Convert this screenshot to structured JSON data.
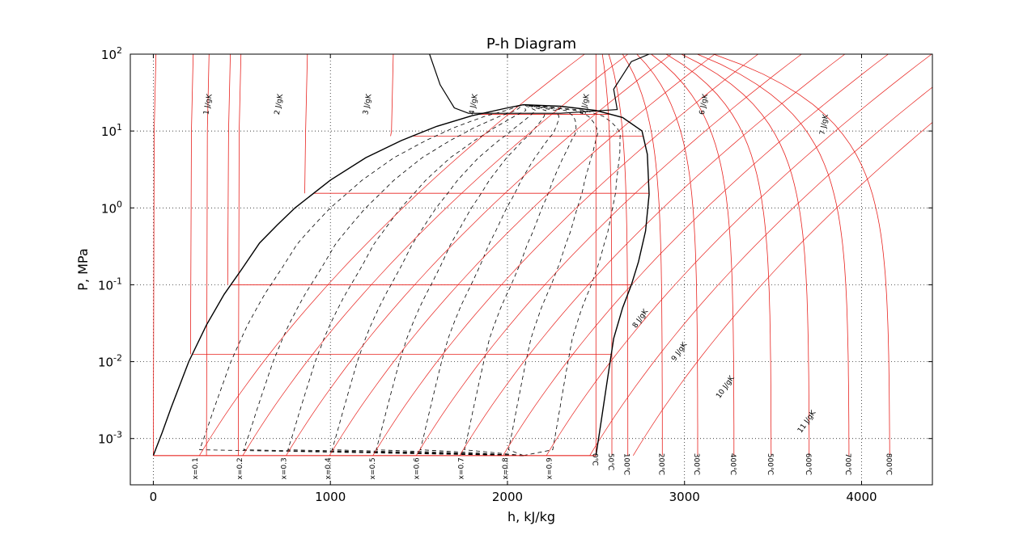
{
  "chart_data": {
    "type": "line",
    "title": "P-h Diagram",
    "xlabel": "h, kJ/kg",
    "ylabel": "P, MPa",
    "xlim": [
      -130,
      4400
    ],
    "ylim": [
      0.00025,
      100
    ],
    "yscale": "log",
    "grid": true,
    "x_ticks": [
      {
        "value": 0,
        "label": "0"
      },
      {
        "value": 1000,
        "label": "1000"
      },
      {
        "value": 2000,
        "label": "2000"
      },
      {
        "value": 3000,
        "label": "3000"
      },
      {
        "value": 4000,
        "label": "4000"
      }
    ],
    "y_ticks": [
      {
        "value": 0.001,
        "base": "10",
        "exp": "-3"
      },
      {
        "value": 0.01,
        "base": "10",
        "exp": "-2"
      },
      {
        "value": 0.1,
        "base": "10",
        "exp": "-1"
      },
      {
        "value": 1,
        "base": "10",
        "exp": "0"
      },
      {
        "value": 10,
        "base": "10",
        "exp": "1"
      },
      {
        "value": 100,
        "base": "10",
        "exp": "2"
      }
    ],
    "colors": {
      "saturation": "#000000",
      "quality": "#000000",
      "entropy": "#e8231f",
      "temperature": "#e8231f",
      "pressure": "#e8231f"
    },
    "saturation_dome": {
      "liquid": [
        [
          0,
          0.0006
        ],
        [
          50,
          0.0012
        ],
        [
          100,
          0.0025
        ],
        [
          200,
          0.01
        ],
        [
          300,
          0.03
        ],
        [
          400,
          0.075
        ],
        [
          500,
          0.16
        ],
        [
          600,
          0.35
        ],
        [
          700,
          0.6
        ],
        [
          800,
          1.0
        ],
        [
          1000,
          2.3
        ],
        [
          1200,
          4.5
        ],
        [
          1400,
          7.5
        ],
        [
          1600,
          11.5
        ],
        [
          1800,
          15.8
        ],
        [
          2000,
          20
        ],
        [
          2090,
          22
        ]
      ],
      "vapor": [
        [
          2090,
          22
        ],
        [
          2300,
          21
        ],
        [
          2500,
          18.5
        ],
        [
          2650,
          15
        ],
        [
          2760,
          10
        ],
        [
          2790,
          5
        ],
        [
          2800,
          1.5
        ],
        [
          2780,
          0.5
        ],
        [
          2740,
          0.2
        ],
        [
          2700,
          0.1
        ],
        [
          2650,
          0.05
        ],
        [
          2600,
          0.02
        ],
        [
          2560,
          0.005
        ],
        [
          2520,
          0.0012
        ],
        [
          2500,
          0.0006
        ]
      ]
    },
    "quality_lines": [
      {
        "label": "x=0.1",
        "label_h": 250
      },
      {
        "label": "x=0.2",
        "label_h": 500
      },
      {
        "label": "x=0.3",
        "label_h": 750
      },
      {
        "label": "x=0.4",
        "label_h": 1000
      },
      {
        "label": "x=0.5",
        "label_h": 1250
      },
      {
        "label": "x=0.6",
        "label_h": 1500
      },
      {
        "label": "x=0.7",
        "label_h": 1750
      },
      {
        "label": "x=0.8",
        "label_h": 2000
      },
      {
        "label": "x=0.9",
        "label_h": 2250
      }
    ],
    "isobars": [
      0.0006,
      0.0125,
      0.1,
      1.55,
      8.6,
      16.5
    ],
    "isotherms": [
      {
        "label": "0℃",
        "h_gas": 2500
      },
      {
        "label": "50℃",
        "h_gas": 2590
      },
      {
        "label": "100℃",
        "h_gas": 2680
      },
      {
        "label": "200℃",
        "h_gas": 2875
      },
      {
        "label": "300℃",
        "h_gas": 3075
      },
      {
        "label": "400℃",
        "h_gas": 3280
      },
      {
        "label": "500℃",
        "h_gas": 3490
      },
      {
        "label": "600℃",
        "h_gas": 3705
      },
      {
        "label": "700℃",
        "h_gas": 3930
      },
      {
        "label": "800℃",
        "h_gas": 4160
      }
    ],
    "isentropes": [
      {
        "label": "1 J/gK",
        "label_h": 320,
        "label_p": 22
      },
      {
        "label": "2 J/gK",
        "label_h": 720,
        "label_p": 22
      },
      {
        "label": "3 J/gK",
        "label_h": 1220,
        "label_p": 22
      },
      {
        "label": "4 J/gK",
        "label_h": 1820,
        "label_p": 22
      },
      {
        "label": "5 J/gK",
        "label_h": 2450,
        "label_p": 22
      },
      {
        "label": "6 J/gK",
        "label_h": 3120,
        "label_p": 22
      },
      {
        "label": "7 J/gK",
        "label_h": 3800,
        "label_p": 12
      },
      {
        "label": "8 J/gK",
        "label_h": 2760,
        "label_p": 0.035
      },
      {
        "label": "9 J/gK",
        "label_h": 2980,
        "label_p": 0.013
      },
      {
        "label": "10 J/gK",
        "label_h": 3240,
        "label_p": 0.0045
      },
      {
        "label": "11 J/gK",
        "label_h": 3700,
        "label_p": 0.0016
      }
    ]
  }
}
